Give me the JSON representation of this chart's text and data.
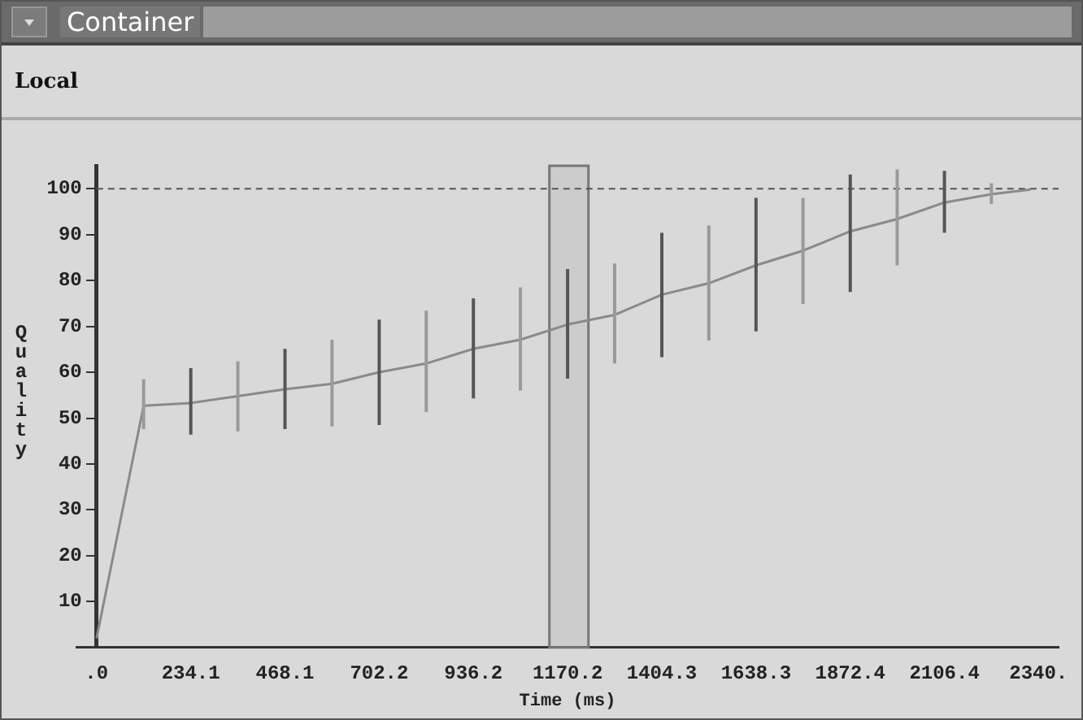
{
  "chart_data": {
    "type": "line",
    "title": "Container",
    "subtitle": "Local",
    "xlabel": "Time (ms)",
    "ylabel": "Quality",
    "x": [
      0,
      117,
      234.1,
      351,
      468.1,
      585,
      702.2,
      819,
      936.2,
      1053,
      1170.2,
      1287,
      1404.3,
      1521,
      1638.3,
      1755,
      1872.4,
      1989,
      2106.4,
      2223,
      2320
    ],
    "series": [
      {
        "color": "#8a8a8a",
        "values": [
          2,
          52.7,
          53.3,
          54.8,
          56.3,
          57.5,
          60,
          61.9,
          65.1,
          67.1,
          70.4,
          72.5,
          76.9,
          79.4,
          83.3,
          86.5,
          90.7,
          93.4,
          97,
          98.8,
          99.8
        ],
        "errors": [
          null,
          [
            47.6,
            58.5
          ],
          [
            46.4,
            60.9
          ],
          [
            47.1,
            62.4
          ],
          [
            47.6,
            65.1
          ],
          [
            48.2,
            67.1
          ],
          [
            48.5,
            71.5
          ],
          [
            51.3,
            73.4
          ],
          [
            54.3,
            76.1
          ],
          [
            56,
            78.5
          ],
          [
            58.6,
            82.5
          ],
          [
            61.9,
            83.7
          ],
          [
            63.3,
            90.4
          ],
          [
            66.9,
            92
          ],
          [
            68.9,
            98
          ],
          [
            74.9,
            98
          ],
          [
            77.5,
            103.1
          ],
          [
            83.3,
            104.2
          ],
          [
            90.4,
            103.9
          ],
          [
            96.7,
            101.2
          ],
          null
        ]
      }
    ],
    "xlim": [
      -50,
      2390
    ],
    "ylim": [
      0,
      105
    ],
    "xticks": [
      {
        "value": 0,
        "label": ".0"
      },
      234.1,
      468.1,
      702.2,
      936.2,
      1170.2,
      1404.3,
      1638.3,
      1872.4,
      2106.4,
      {
        "value": 2340,
        "label": "2340."
      }
    ],
    "yticks": [
      10,
      20,
      30,
      40,
      50,
      60,
      70,
      80,
      90,
      100
    ],
    "ref_lines": [
      {
        "axis": "y",
        "value": 100,
        "line_style": "dashed",
        "color": "#555555"
      }
    ],
    "bands": [
      {
        "axis": "x",
        "from": 1125,
        "to": 1222,
        "color": "#777777"
      }
    ],
    "grid": false,
    "legend": false,
    "marker": "none",
    "line_style": "solid"
  }
}
